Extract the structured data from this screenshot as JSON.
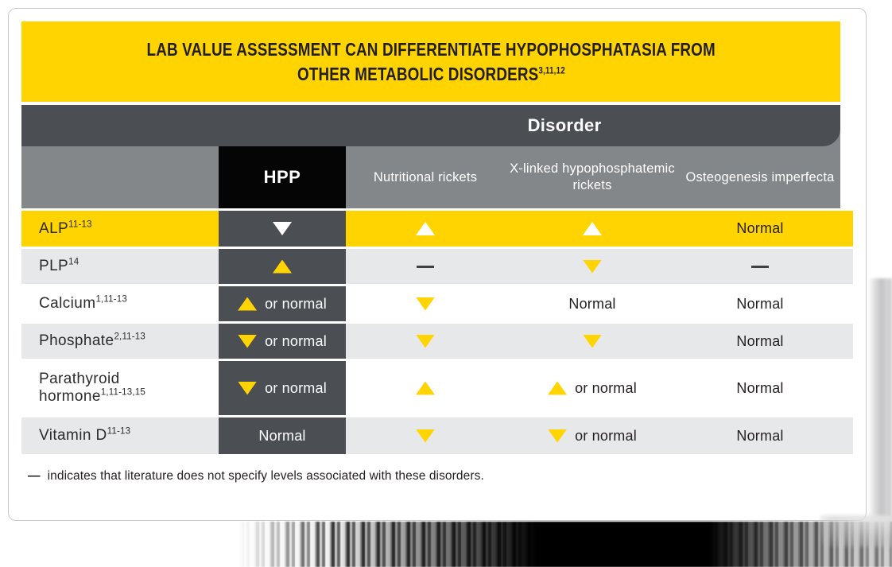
{
  "banner": {
    "title_line1": "LAB VALUE ASSESSMENT CAN DIFFERENTIATE HYPOPHOSPHATASIA FROM",
    "title_line2": "OTHER METABOLIC DISORDERS",
    "title_refs": "3,11,12"
  },
  "table": {
    "group_header": "Disorder",
    "columns": [
      {
        "key": "hpp",
        "label": "HPP"
      },
      {
        "key": "nutritional-rickets",
        "label": "Nutritional rickets"
      },
      {
        "key": "xlh-rickets",
        "label": "X-linked hypophosphatemic rickets"
      },
      {
        "key": "osteogenesis-imperfecta",
        "label": "Osteogenesis imperfecta"
      }
    ],
    "rows": [
      {
        "label": "ALP",
        "refs": "11-13",
        "bg": "yellow",
        "height": "h45",
        "wrap": false,
        "cells": [
          {
            "icon": "down",
            "icon_color": "#FFFFFF",
            "text": ""
          },
          {
            "icon": "up",
            "icon_color": "#FFFFFF",
            "text": ""
          },
          {
            "icon": "up",
            "icon_color": "#FFFFFF",
            "text": ""
          },
          {
            "icon": null,
            "icon_color": null,
            "text": "Normal"
          }
        ]
      },
      {
        "label": "PLP",
        "refs": "14",
        "bg": "light",
        "height": "h44",
        "wrap": false,
        "cells": [
          {
            "icon": "up",
            "icon_color": "#FFD400",
            "text": ""
          },
          {
            "icon": "dash",
            "icon_color": "#414042",
            "text": ""
          },
          {
            "icon": "down",
            "icon_color": "#FFD400",
            "text": ""
          },
          {
            "icon": "dash",
            "icon_color": "#414042",
            "text": ""
          }
        ]
      },
      {
        "label": "Calcium",
        "refs": "1,11-13",
        "bg": "white",
        "height": "h44",
        "wrap": false,
        "cells": [
          {
            "icon": "up",
            "icon_color": "#FFD400",
            "text": "or normal"
          },
          {
            "icon": "down",
            "icon_color": "#FFD400",
            "text": ""
          },
          {
            "icon": null,
            "icon_color": null,
            "text": "Normal"
          },
          {
            "icon": null,
            "icon_color": null,
            "text": "Normal"
          }
        ]
      },
      {
        "label": "Phosphate",
        "refs": "2,11-13",
        "bg": "light",
        "height": "h44",
        "wrap": false,
        "cells": [
          {
            "icon": "down",
            "icon_color": "#FFD400",
            "text": "or normal"
          },
          {
            "icon": "down",
            "icon_color": "#FFD400",
            "text": ""
          },
          {
            "icon": "down",
            "icon_color": "#FFD400",
            "text": ""
          },
          {
            "icon": null,
            "icon_color": null,
            "text": "Normal"
          }
        ]
      },
      {
        "label": "Parathyroid hormone",
        "refs": "1,11-13,15",
        "bg": "white",
        "height": "h68",
        "wrap": true,
        "cells": [
          {
            "icon": "down",
            "icon_color": "#FFD400",
            "text": "or normal"
          },
          {
            "icon": "up",
            "icon_color": "#FFD400",
            "text": ""
          },
          {
            "icon": "up",
            "icon_color": "#FFD400",
            "text": "or normal"
          },
          {
            "icon": null,
            "icon_color": null,
            "text": "Normal"
          }
        ]
      },
      {
        "label": "Vitamin D",
        "refs": "11-13",
        "bg": "light",
        "height": "h46",
        "wrap": false,
        "cells": [
          {
            "icon": null,
            "icon_color": null,
            "text": "Normal"
          },
          {
            "icon": "down",
            "icon_color": "#FFD400",
            "text": ""
          },
          {
            "icon": "down",
            "icon_color": "#FFD400",
            "text": "or normal"
          },
          {
            "icon": null,
            "icon_color": null,
            "text": "Normal"
          }
        ]
      }
    ]
  },
  "footnote": {
    "dash": "—",
    "text": "indicates that literature does not specify levels associated with these disorders."
  },
  "colors": {
    "accent_yellow": "#FFD400",
    "dark_gray": "#4B4F54",
    "mid_gray": "#84878A",
    "light_row": "#E7E8E9",
    "hpp_black": "#050505",
    "text_dark": "#231F20"
  },
  "chart_data": {
    "type": "table",
    "title": "LAB VALUE ASSESSMENT CAN DIFFERENTIATE HYPOPHOSPHATASIA FROM OTHER METABOLIC DISORDERS (refs 3,11,12)",
    "columns": [
      "HPP",
      "Nutritional rickets",
      "X-linked hypophosphatemic rickets",
      "Osteogenesis imperfecta"
    ],
    "row_labels": [
      "ALP (11-13)",
      "PLP (14)",
      "Calcium (1,11-13)",
      "Phosphate (2,11-13)",
      "Parathyroid hormone (1,11-13,15)",
      "Vitamin D (11-13)"
    ],
    "values": [
      [
        "▼",
        "▲",
        "▲",
        "Normal"
      ],
      [
        "▲",
        "—",
        "▼",
        "—"
      ],
      [
        "▲ or normal",
        "▼",
        "Normal",
        "Normal"
      ],
      [
        "▼ or normal",
        "▼",
        "▼",
        "Normal"
      ],
      [
        "▼ or normal",
        "▲",
        "▲ or normal",
        "Normal"
      ],
      [
        "Normal",
        "▼",
        "▼ or normal",
        "Normal"
      ]
    ],
    "footnote": "— indicates that literature does not specify levels associated with these disorders.",
    "legend_position": "none",
    "highlight_row": "ALP"
  }
}
